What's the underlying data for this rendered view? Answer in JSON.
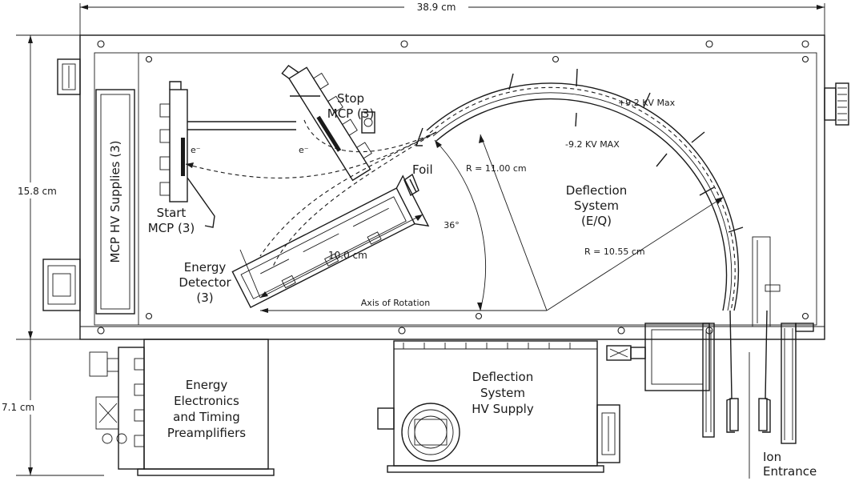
{
  "dimensions": {
    "width_label": "38.9 cm",
    "height_main_label": "15.8 cm",
    "height_lower_label": "7.1 cm"
  },
  "labels": {
    "mcp_hv_supplies": "MCP HV Supplies (3)",
    "stop_mcp_line1": "Stop",
    "stop_mcp_line2": "MCP (3)",
    "start_mcp_line1": "Start",
    "start_mcp_line2": "MCP (3)",
    "electron_1": "e⁻",
    "electron_2": "e⁻",
    "foil": "Foil",
    "energy_detector_line1": "Energy",
    "energy_detector_line2": "Detector",
    "energy_detector_line3": "(3)",
    "length_10": "10.0 cm",
    "angle_36": "36°",
    "axis_of_rotation": "Axis of Rotation",
    "radius_outer": "R = 11.00 cm",
    "radius_inner": "R = 10.55 cm",
    "plus_voltage": "+9.2 KV Max",
    "minus_voltage": "-9.2 KV MAX",
    "deflection_line1": "Deflection",
    "deflection_line2": "System",
    "deflection_line3": "(E/Q)",
    "energy_elec_line1": "Energy",
    "energy_elec_line2": "Electronics",
    "energy_elec_line3": "and Timing",
    "energy_elec_line4": "Preamplifiers",
    "hv_supply_line1": "Deflection",
    "hv_supply_line2": "System",
    "hv_supply_line3": "HV Supply",
    "ion_entrance_line1": "Ion",
    "ion_entrance_line2": "Entrance"
  }
}
